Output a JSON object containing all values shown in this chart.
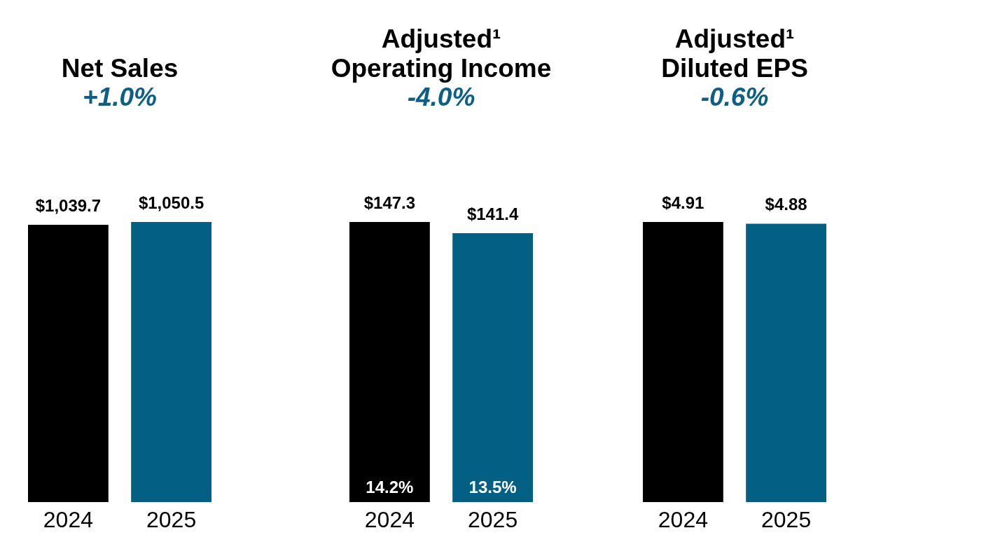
{
  "chart_data": [
    {
      "type": "bar",
      "title": "Net Sales",
      "subtitle": "+1.0%",
      "categories": [
        "2024",
        "2025"
      ],
      "values": [
        1039.7,
        1050.5
      ],
      "colors": [
        "#000000",
        "#045f85"
      ],
      "value_labels": [
        "$1,039.7",
        "$1,050.5"
      ]
    },
    {
      "type": "bar",
      "title": "Adjusted¹\nOperating Income",
      "subtitle": "-4.0%",
      "categories": [
        "2024",
        "2025"
      ],
      "values": [
        147.3,
        141.4
      ],
      "colors": [
        "#000000",
        "#045f85"
      ],
      "value_labels": [
        "$147.3",
        "$141.4"
      ],
      "annotations": [
        {
          "text": "14.2%",
          "x": "2024",
          "y": 0
        },
        {
          "text": "13.5%",
          "x": "2025",
          "y": 0
        }
      ]
    },
    {
      "type": "bar",
      "title": "Adjusted¹\nDiluted EPS",
      "subtitle": "-0.6%",
      "categories": [
        "2024",
        "2025"
      ],
      "values": [
        4.91,
        4.88
      ],
      "colors": [
        "#000000",
        "#045f85"
      ],
      "value_labels": [
        "$4.91",
        "$4.88"
      ]
    }
  ]
}
